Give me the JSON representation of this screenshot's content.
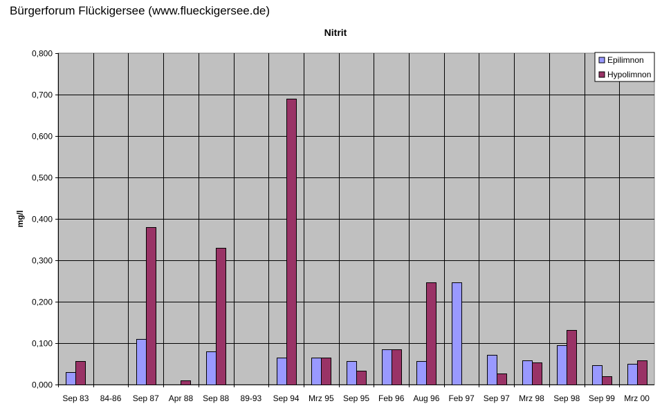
{
  "header": {
    "text": "Bürgerforum Flückigersee (www.flueckigersee.de)"
  },
  "chart_data": {
    "type": "bar",
    "title": "Nitrit",
    "xlabel": "",
    "ylabel": "mg/l",
    "ylim": [
      0,
      0.8
    ],
    "yticks": [
      "0,000",
      "0,100",
      "0,200",
      "0,300",
      "0,400",
      "0,500",
      "0,600",
      "0,700",
      "0,800"
    ],
    "grid": true,
    "legend_position": "top-right",
    "categories": [
      "Sep 83",
      "84-86",
      "Sep 87",
      "Apr 88",
      "Sep 88",
      "89-93",
      "Sep 94",
      "Mrz 95",
      "Sep 95",
      "Feb 96",
      "Aug 96",
      "Feb 97",
      "Sep 97",
      "Mrz 98",
      "Sep 98",
      "Sep 99",
      "Mrz 00"
    ],
    "series": [
      {
        "name": "Epilimnon",
        "color": "#9999ff",
        "values": [
          0.03,
          null,
          0.11,
          null,
          0.08,
          null,
          0.065,
          0.065,
          0.057,
          0.085,
          0.057,
          0.247,
          0.072,
          0.059,
          0.095,
          0.047,
          0.05
        ]
      },
      {
        "name": "Hypolimnon",
        "color": "#993366",
        "values": [
          0.057,
          null,
          0.38,
          0.01,
          0.33,
          null,
          0.69,
          0.065,
          0.033,
          0.085,
          0.247,
          null,
          0.027,
          0.054,
          0.132,
          0.02,
          0.059
        ]
      }
    ],
    "plot_background": "#c0c0c0"
  }
}
